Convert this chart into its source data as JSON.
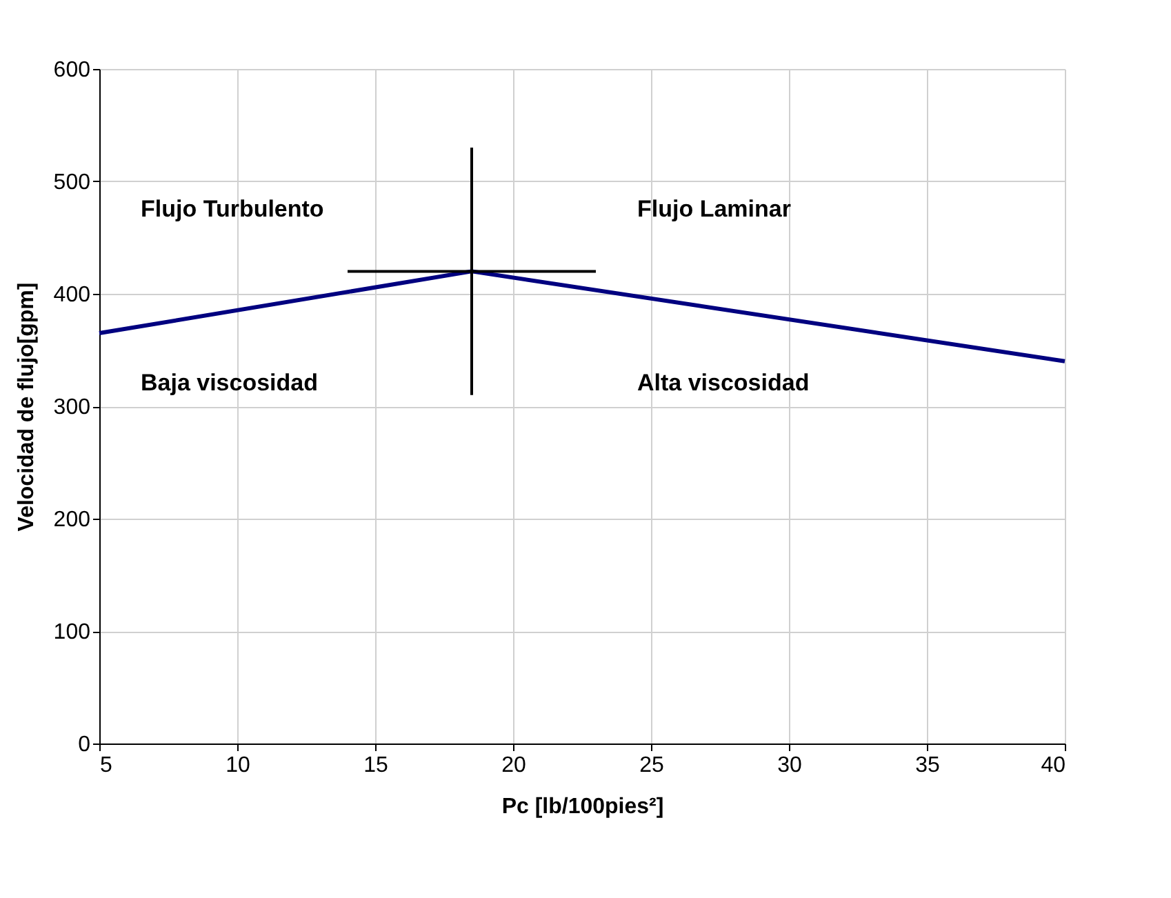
{
  "chart_data": {
    "type": "line",
    "xlabel": "Pc [lb/100pies²]",
    "ylabel": "Velocidad de flujo[gpm]",
    "xlim": [
      5,
      40
    ],
    "ylim": [
      0,
      600
    ],
    "xticks": [
      5,
      10,
      15,
      20,
      25,
      30,
      35,
      40
    ],
    "yticks": [
      0,
      100,
      200,
      300,
      400,
      500,
      600
    ],
    "grid": true,
    "marker": "none",
    "line_style": "solid",
    "series": [
      {
        "color": "#000080",
        "x": [
          5,
          18.5,
          40
        ],
        "values": [
          365,
          420,
          340
        ]
      },
      {
        "color": "#000000",
        "x": [
          18.5,
          18.5
        ],
        "values": [
          310,
          530
        ]
      },
      {
        "color": "#000000",
        "x": [
          14,
          23
        ],
        "values": [
          420,
          420
        ]
      }
    ],
    "annotations": [
      "Flujo Turbulento",
      "Flujo Laminar",
      "Baja viscosidad",
      "Alta viscosidad"
    ]
  }
}
